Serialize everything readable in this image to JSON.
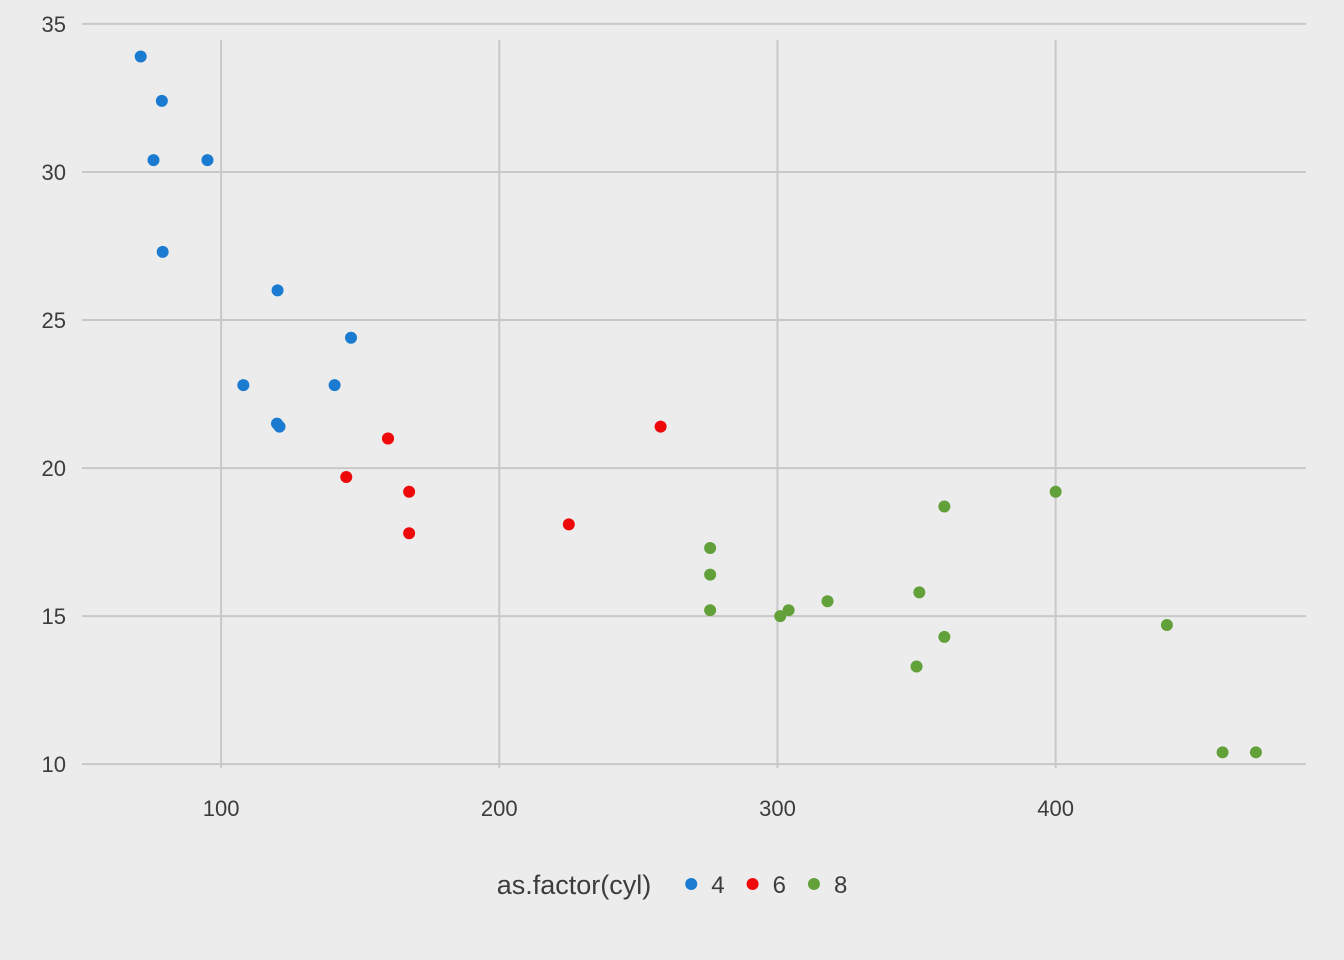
{
  "chart_data": {
    "type": "scatter",
    "title": "",
    "xlabel": "",
    "ylabel": "",
    "xlim": [
      50,
      490
    ],
    "ylim": [
      9.6,
      35.2
    ],
    "x_ticks": [
      100,
      200,
      300,
      400
    ],
    "y_ticks": [
      10,
      15,
      20,
      25,
      30,
      35
    ],
    "grid": true,
    "legend": {
      "position": "bottom",
      "title": "as.factor(cyl)"
    },
    "series": [
      {
        "name": "4",
        "color": "#1a7bd0",
        "points": [
          {
            "x": 71.1,
            "y": 33.9
          },
          {
            "x": 78.7,
            "y": 32.4
          },
          {
            "x": 75.7,
            "y": 30.4
          },
          {
            "x": 95.1,
            "y": 30.4
          },
          {
            "x": 79.0,
            "y": 27.3
          },
          {
            "x": 120.3,
            "y": 26.0
          },
          {
            "x": 146.7,
            "y": 24.4
          },
          {
            "x": 108.0,
            "y": 22.8
          },
          {
            "x": 140.8,
            "y": 22.8
          },
          {
            "x": 120.1,
            "y": 21.5
          },
          {
            "x": 121.0,
            "y": 21.4
          }
        ]
      },
      {
        "name": "6",
        "color": "#ee0a0a",
        "points": [
          {
            "x": 160.0,
            "y": 21.0
          },
          {
            "x": 160.0,
            "y": 21.0
          },
          {
            "x": 258.0,
            "y": 21.4
          },
          {
            "x": 145.0,
            "y": 19.7
          },
          {
            "x": 167.6,
            "y": 19.2
          },
          {
            "x": 167.6,
            "y": 17.8
          },
          {
            "x": 225.0,
            "y": 18.1
          }
        ]
      },
      {
        "name": "8",
        "color": "#62a03a",
        "points": [
          {
            "x": 275.8,
            "y": 17.3
          },
          {
            "x": 275.8,
            "y": 16.4
          },
          {
            "x": 275.8,
            "y": 15.2
          },
          {
            "x": 301.0,
            "y": 15.0
          },
          {
            "x": 304.0,
            "y": 15.2
          },
          {
            "x": 318.0,
            "y": 15.5
          },
          {
            "x": 350.0,
            "y": 13.3
          },
          {
            "x": 351.0,
            "y": 15.8
          },
          {
            "x": 360.0,
            "y": 18.7
          },
          {
            "x": 360.0,
            "y": 14.3
          },
          {
            "x": 400.0,
            "y": 19.2
          },
          {
            "x": 440.0,
            "y": 14.7
          },
          {
            "x": 460.0,
            "y": 10.4
          },
          {
            "x": 472.0,
            "y": 10.4
          }
        ]
      }
    ]
  }
}
